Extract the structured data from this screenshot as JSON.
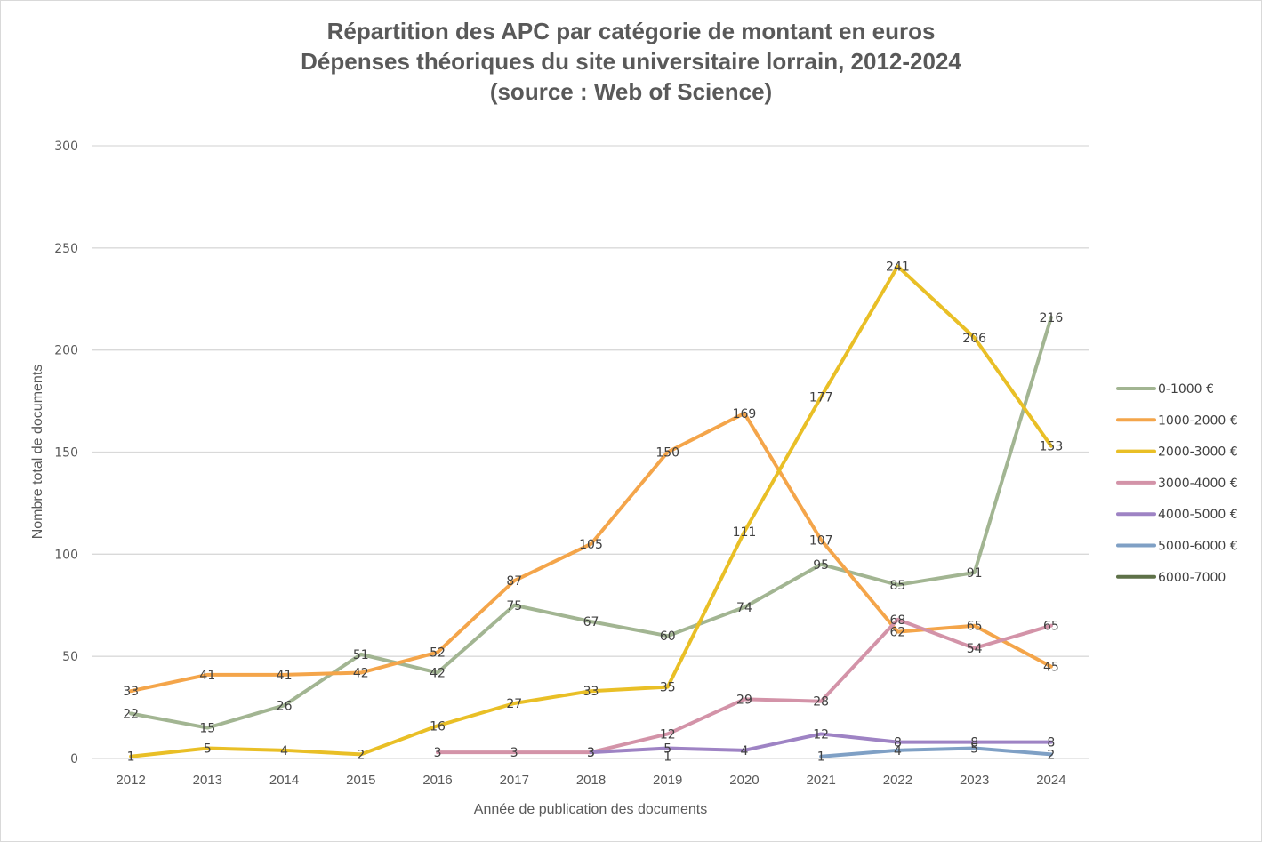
{
  "chart_data": {
    "type": "line",
    "title_lines": [
      "Répartition des APC par catégorie de montant en euros",
      "Dépenses théoriques du site universitaire lorrain, 2012-2024",
      "(source : Web of Science)"
    ],
    "xlabel": "Année de publication des documents",
    "ylabel": "Nombre total de documents",
    "x": [
      "2012",
      "2013",
      "2014",
      "2015",
      "2016",
      "2017",
      "2018",
      "2019",
      "2020",
      "2021",
      "2022",
      "2023",
      "2024"
    ],
    "ylim": [
      0,
      300
    ],
    "yticks": [
      0,
      50,
      100,
      150,
      200,
      250,
      300
    ],
    "grid": true,
    "legend_position": "right",
    "series": [
      {
        "name": "0-1000 €",
        "color": "#a2b592",
        "values": [
          22,
          15,
          26,
          51,
          42,
          75,
          67,
          60,
          74,
          95,
          85,
          91,
          216
        ]
      },
      {
        "name": "1000-2000 €",
        "color": "#f4a54a",
        "values": [
          33,
          41,
          41,
          42,
          52,
          87,
          105,
          150,
          169,
          107,
          62,
          65,
          45
        ]
      },
      {
        "name": "2000-3000 €",
        "color": "#e9bf26",
        "values": [
          1,
          5,
          4,
          2,
          16,
          27,
          33,
          35,
          111,
          177,
          241,
          206,
          153
        ]
      },
      {
        "name": "3000-4000 €",
        "color": "#d393a8",
        "values": [
          null,
          null,
          null,
          null,
          3,
          3,
          3,
          12,
          29,
          28,
          68,
          54,
          65
        ]
      },
      {
        "name": "4000-5000 €",
        "color": "#9e83c4",
        "values": [
          null,
          null,
          null,
          null,
          null,
          null,
          3,
          5,
          4,
          12,
          8,
          8,
          8
        ]
      },
      {
        "name": "5000-6000 €",
        "color": "#7fa0c5",
        "values": [
          null,
          null,
          null,
          null,
          null,
          null,
          null,
          null,
          null,
          1,
          4,
          5,
          2
        ]
      },
      {
        "name": "6000-7000",
        "color": "#5e7148",
        "values": [
          null,
          null,
          null,
          null,
          null,
          null,
          null,
          1,
          null,
          null,
          null,
          null,
          null
        ]
      }
    ]
  }
}
